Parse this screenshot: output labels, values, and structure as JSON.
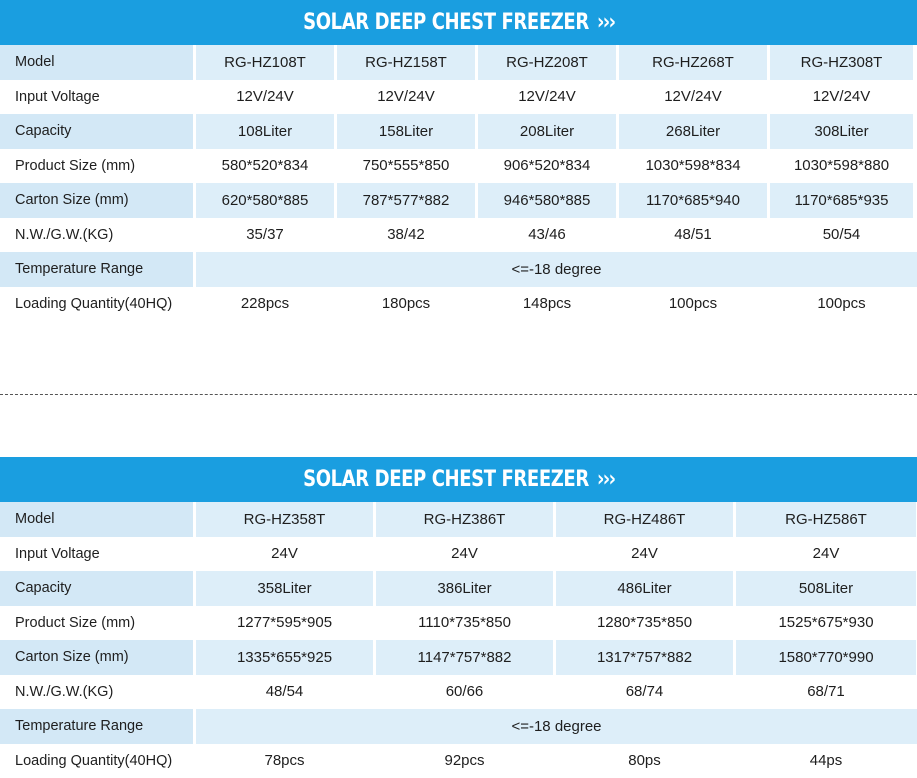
{
  "table1": {
    "title": "SOLAR DEEP CHEST FREEZER",
    "chevrons": "›››",
    "rows": [
      {
        "label": "Model",
        "values": [
          "RG-HZ108T",
          "RG-HZ158T",
          "RG-HZ208T",
          "RG-HZ268T",
          "RG-HZ308T"
        ]
      },
      {
        "label": "Input Voltage",
        "values": [
          "12V/24V",
          "12V/24V",
          "12V/24V",
          "12V/24V",
          "12V/24V"
        ]
      },
      {
        "label": "Capacity",
        "values": [
          "108Liter",
          "158Liter",
          "208Liter",
          "268Liter",
          "308Liter"
        ]
      },
      {
        "label": "Product Size (mm)",
        "values": [
          "580*520*834",
          "750*555*850",
          "906*520*834",
          "1030*598*834",
          "1030*598*880"
        ]
      },
      {
        "label": "Carton Size (mm)",
        "values": [
          "620*580*885",
          "787*577*882",
          "946*580*885",
          "1170*685*940",
          "1170*685*935"
        ]
      },
      {
        "label": "N.W./G.W.(KG)",
        "values": [
          "35/37",
          "38/42",
          "43/46",
          "48/51",
          "50/54"
        ]
      },
      {
        "label": "Temperature Range",
        "merged": "<=-18 degree"
      },
      {
        "label": "Loading Quantity(40HQ)",
        "values": [
          "228pcs",
          "180pcs",
          "148pcs",
          "100pcs",
          "100pcs"
        ]
      }
    ]
  },
  "table2": {
    "title": "SOLAR DEEP CHEST FREEZER",
    "chevrons": "›››",
    "rows": [
      {
        "label": "Model",
        "values": [
          "RG-HZ358T",
          "RG-HZ386T",
          "RG-HZ486T",
          "RG-HZ586T"
        ]
      },
      {
        "label": "Input Voltage",
        "values": [
          "24V",
          "24V",
          "24V",
          "24V"
        ]
      },
      {
        "label": "Capacity",
        "values": [
          "358Liter",
          "386Liter",
          "486Liter",
          "508Liter"
        ]
      },
      {
        "label": "Product Size (mm)",
        "values": [
          "1277*595*905",
          "1110*735*850",
          "1280*735*850",
          "1525*675*930"
        ]
      },
      {
        "label": "Carton Size (mm)",
        "values": [
          "1335*655*925",
          "1147*757*882",
          "1317*757*882",
          "1580*770*990"
        ]
      },
      {
        "label": "N.W./G.W.(KG)",
        "values": [
          "48/54",
          "60/66",
          "68/74",
          "68/71"
        ]
      },
      {
        "label": "Temperature Range",
        "merged": "<=-18 degree"
      },
      {
        "label": "Loading Quantity(40HQ)",
        "values": [
          "78pcs",
          "92pcs",
          "80ps",
          "44ps"
        ]
      }
    ]
  },
  "colors": {
    "banner": "#1a9ee0",
    "row_shade": "#ddeef9"
  }
}
